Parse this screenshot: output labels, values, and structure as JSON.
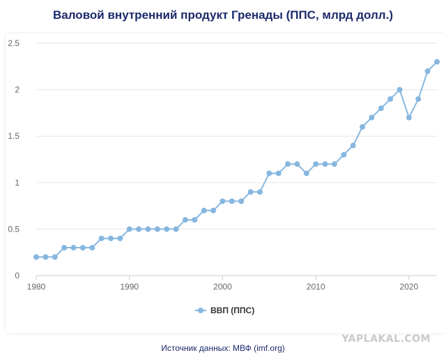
{
  "page": {
    "title": "Валовой внутренний продукт Гренады (ППС, млрд долл.)",
    "source": "Источник данных: МВФ (imf.org)",
    "watermark": "YAPLAKAL.COM"
  },
  "colors": {
    "line": "#86b7e0",
    "grid": "#e6e6e6",
    "axis": "#cccccc",
    "title": "#1c2a6b"
  },
  "chart_data": {
    "type": "line",
    "title": "Валовой внутренний продукт Гренады (ППС, млрд долл.)",
    "xlabel": "",
    "ylabel": "",
    "xlim": [
      1980,
      2023
    ],
    "ylim": [
      0,
      2.5
    ],
    "x_ticks": [
      1980,
      1990,
      2000,
      2010,
      2020
    ],
    "y_ticks": [
      0,
      0.5,
      1,
      1.5,
      2,
      2.5
    ],
    "y_tick_labels": [
      "0",
      "0.5",
      "1",
      "1.5",
      "2",
      "2.5"
    ],
    "grid": true,
    "legend": "bottom-center",
    "series": [
      {
        "name": "ВВП (ППС)",
        "x": [
          1980,
          1981,
          1982,
          1983,
          1984,
          1985,
          1986,
          1987,
          1988,
          1989,
          1990,
          1991,
          1992,
          1993,
          1994,
          1995,
          1996,
          1997,
          1998,
          1999,
          2000,
          2001,
          2002,
          2003,
          2004,
          2005,
          2006,
          2007,
          2008,
          2009,
          2010,
          2011,
          2012,
          2013,
          2014,
          2015,
          2016,
          2017,
          2018,
          2019,
          2020,
          2021,
          2022,
          2023
        ],
        "y": [
          0.2,
          0.2,
          0.2,
          0.3,
          0.3,
          0.3,
          0.3,
          0.4,
          0.4,
          0.4,
          0.5,
          0.5,
          0.5,
          0.5,
          0.5,
          0.5,
          0.6,
          0.6,
          0.7,
          0.7,
          0.8,
          0.8,
          0.8,
          0.9,
          0.9,
          1.1,
          1.1,
          1.2,
          1.2,
          1.1,
          1.2,
          1.2,
          1.2,
          1.3,
          1.4,
          1.6,
          1.7,
          1.8,
          1.9,
          2.0,
          1.7,
          1.9,
          2.2,
          2.3
        ]
      }
    ]
  }
}
